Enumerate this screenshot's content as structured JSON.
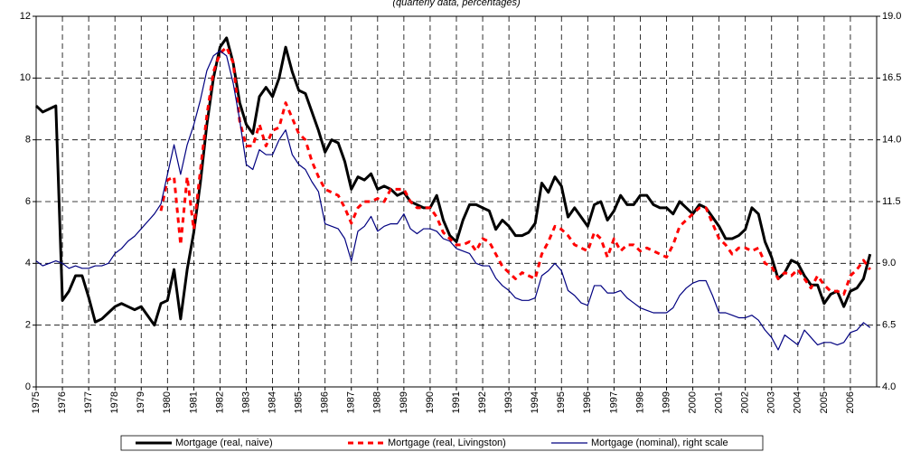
{
  "chart_data": {
    "type": "line",
    "subtitle": "(quarterly data, percentages)",
    "categories": [
      "1975",
      null,
      null,
      null,
      "1976",
      null,
      null,
      null,
      "1977",
      null,
      null,
      null,
      "1978",
      null,
      null,
      null,
      "1979",
      null,
      null,
      null,
      "1980",
      null,
      null,
      null,
      "1981",
      null,
      null,
      null,
      "1982",
      null,
      null,
      null,
      "1983",
      null,
      null,
      null,
      "1984",
      null,
      null,
      null,
      "1985",
      null,
      null,
      null,
      "1986",
      null,
      null,
      null,
      "1987",
      null,
      null,
      null,
      "1988",
      null,
      null,
      null,
      "1989",
      null,
      null,
      null,
      "1990",
      null,
      null,
      null,
      "1991",
      null,
      null,
      null,
      "1992",
      null,
      null,
      null,
      "1993",
      null,
      null,
      null,
      "1994",
      null,
      null,
      null,
      "1995",
      null,
      null,
      null,
      "1996",
      null,
      null,
      null,
      "1997",
      null,
      null,
      null,
      "1998",
      null,
      null,
      null,
      "1999",
      null,
      null,
      null,
      "2000",
      null,
      null,
      null,
      "2001",
      null,
      null,
      null,
      "2002",
      null,
      null,
      null,
      "2003",
      null,
      null,
      null,
      "2004",
      null,
      null,
      null,
      "2005",
      null,
      null,
      null,
      "2006",
      null,
      null,
      null
    ],
    "series": [
      {
        "name": "Mortgage (real, naive)",
        "color": "#000000",
        "line_style": "solid",
        "weight": "bold",
        "values": [
          9.1,
          8.9,
          9.0,
          9.1,
          2.8,
          3.1,
          3.6,
          3.6,
          2.9,
          2.1,
          2.2,
          2.4,
          2.6,
          2.7,
          2.6,
          2.5,
          2.6,
          2.3,
          2.0,
          2.7,
          2.8,
          3.8,
          2.2,
          3.8,
          5.0,
          6.6,
          8.5,
          10.0,
          11.0,
          11.3,
          10.5,
          9.2,
          8.5,
          8.2,
          9.4,
          9.7,
          9.4,
          10.0,
          11.0,
          10.2,
          9.6,
          9.5,
          8.9,
          8.3,
          7.6,
          8.0,
          7.9,
          7.3,
          6.4,
          6.8,
          6.7,
          6.9,
          6.4,
          6.5,
          6.4,
          6.2,
          6.3,
          6.0,
          5.9,
          5.8,
          5.8,
          6.2,
          5.4,
          4.9,
          4.7,
          5.4,
          5.9,
          5.9,
          5.8,
          5.7,
          5.1,
          5.4,
          5.2,
          4.9,
          4.9,
          5.0,
          5.3,
          6.6,
          6.3,
          6.8,
          6.5,
          5.5,
          5.8,
          5.5,
          5.2,
          5.9,
          6.0,
          5.4,
          5.7,
          6.2,
          5.9,
          5.9,
          6.2,
          6.2,
          5.9,
          5.8,
          5.8,
          5.6,
          6.0,
          5.8,
          5.6,
          5.9,
          5.8,
          5.5,
          5.2,
          4.8,
          4.8,
          4.9,
          5.1,
          5.8,
          5.6,
          4.7,
          4.2,
          3.5,
          3.7,
          4.1,
          4.0,
          3.6,
          3.3,
          3.3,
          2.7,
          3.0,
          3.1,
          2.6,
          3.1,
          3.2,
          3.5,
          4.3
        ]
      },
      {
        "name": "Mortgage (real, Livingston)",
        "color": "#ff0000",
        "line_style": "dashed",
        "weight": "bold",
        "values": [
          null,
          null,
          null,
          null,
          null,
          null,
          null,
          null,
          null,
          null,
          null,
          null,
          null,
          null,
          null,
          null,
          null,
          null,
          null,
          5.7,
          6.7,
          6.8,
          4.6,
          6.8,
          5.1,
          7.0,
          8.8,
          10.2,
          10.8,
          11.0,
          10.5,
          8.6,
          7.8,
          7.8,
          8.5,
          7.8,
          8.3,
          8.4,
          9.2,
          8.7,
          8.2,
          8.0,
          7.3,
          6.8,
          6.4,
          6.3,
          6.2,
          5.8,
          5.3,
          5.8,
          6.0,
          6.0,
          6.1,
          6.0,
          6.4,
          6.4,
          6.4,
          6.0,
          5.8,
          5.8,
          5.8,
          5.5,
          5.0,
          4.8,
          4.6,
          4.6,
          4.7,
          4.4,
          4.8,
          4.7,
          4.3,
          3.9,
          3.7,
          3.5,
          3.7,
          3.6,
          3.5,
          4.3,
          4.7,
          5.2,
          5.1,
          4.9,
          4.6,
          4.5,
          4.4,
          5.0,
          4.8,
          4.2,
          4.8,
          4.4,
          4.6,
          4.6,
          4.4,
          4.5,
          4.4,
          4.3,
          4.2,
          4.6,
          5.2,
          5.4,
          5.6,
          5.8,
          5.8,
          5.3,
          4.8,
          4.6,
          4.3,
          4.5,
          4.5,
          4.4,
          4.5,
          4.0,
          3.9,
          3.5,
          3.7,
          3.6,
          3.8,
          3.5,
          3.2,
          3.6,
          3.3,
          3.1,
          3.1,
          3.0,
          3.6,
          3.8,
          4.1,
          3.8
        ]
      },
      {
        "name": "Mortgage (nominal), right scale",
        "color": "#000080",
        "line_style": "solid",
        "weight": "thin",
        "axis": "y2",
        "values": [
          9.1,
          8.9,
          9.0,
          9.1,
          9.0,
          8.8,
          8.9,
          8.8,
          8.8,
          8.9,
          8.9,
          9.0,
          9.4,
          9.6,
          9.9,
          10.1,
          10.4,
          10.7,
          11.0,
          11.4,
          12.6,
          13.8,
          12.6,
          13.8,
          14.6,
          15.6,
          16.8,
          17.4,
          17.6,
          17.4,
          16.3,
          14.8,
          13.0,
          12.8,
          13.6,
          13.4,
          13.4,
          14.0,
          14.4,
          13.4,
          13.0,
          12.8,
          12.3,
          11.9,
          10.6,
          10.5,
          10.4,
          10.0,
          9.1,
          10.3,
          10.5,
          10.9,
          10.3,
          10.5,
          10.6,
          10.6,
          11.0,
          10.4,
          10.2,
          10.4,
          10.4,
          10.3,
          10.0,
          9.9,
          9.6,
          9.5,
          9.4,
          9.0,
          8.9,
          8.9,
          8.4,
          8.1,
          7.9,
          7.6,
          7.5,
          7.5,
          7.6,
          8.5,
          8.7,
          9.0,
          8.7,
          7.9,
          7.7,
          7.4,
          7.3,
          8.1,
          8.1,
          7.8,
          7.8,
          7.9,
          7.6,
          7.4,
          7.2,
          7.1,
          7.0,
          7.0,
          7.0,
          7.2,
          7.7,
          8.0,
          8.2,
          8.3,
          8.3,
          7.7,
          7.0,
          7.0,
          6.9,
          6.8,
          6.8,
          6.9,
          6.7,
          6.3,
          6.0,
          5.5,
          6.1,
          5.9,
          5.7,
          6.3,
          6.0,
          5.7,
          5.8,
          5.8,
          5.7,
          5.8,
          6.2,
          6.3,
          6.6,
          6.4
        ]
      }
    ],
    "ylim": [
      0,
      12
    ],
    "yticks": [
      0,
      2,
      4,
      6,
      8,
      10,
      12
    ],
    "y2lim": [
      4,
      19
    ],
    "y2ticks": [
      {
        "value": 4,
        "label": "4.0"
      },
      6.5,
      {
        "value": 9,
        "label": "9.0"
      },
      11.5,
      {
        "value": 14,
        "label": "14.0"
      },
      16.5,
      {
        "value": 19,
        "label": "19.0"
      }
    ],
    "grid": true,
    "legend": "bottom"
  }
}
